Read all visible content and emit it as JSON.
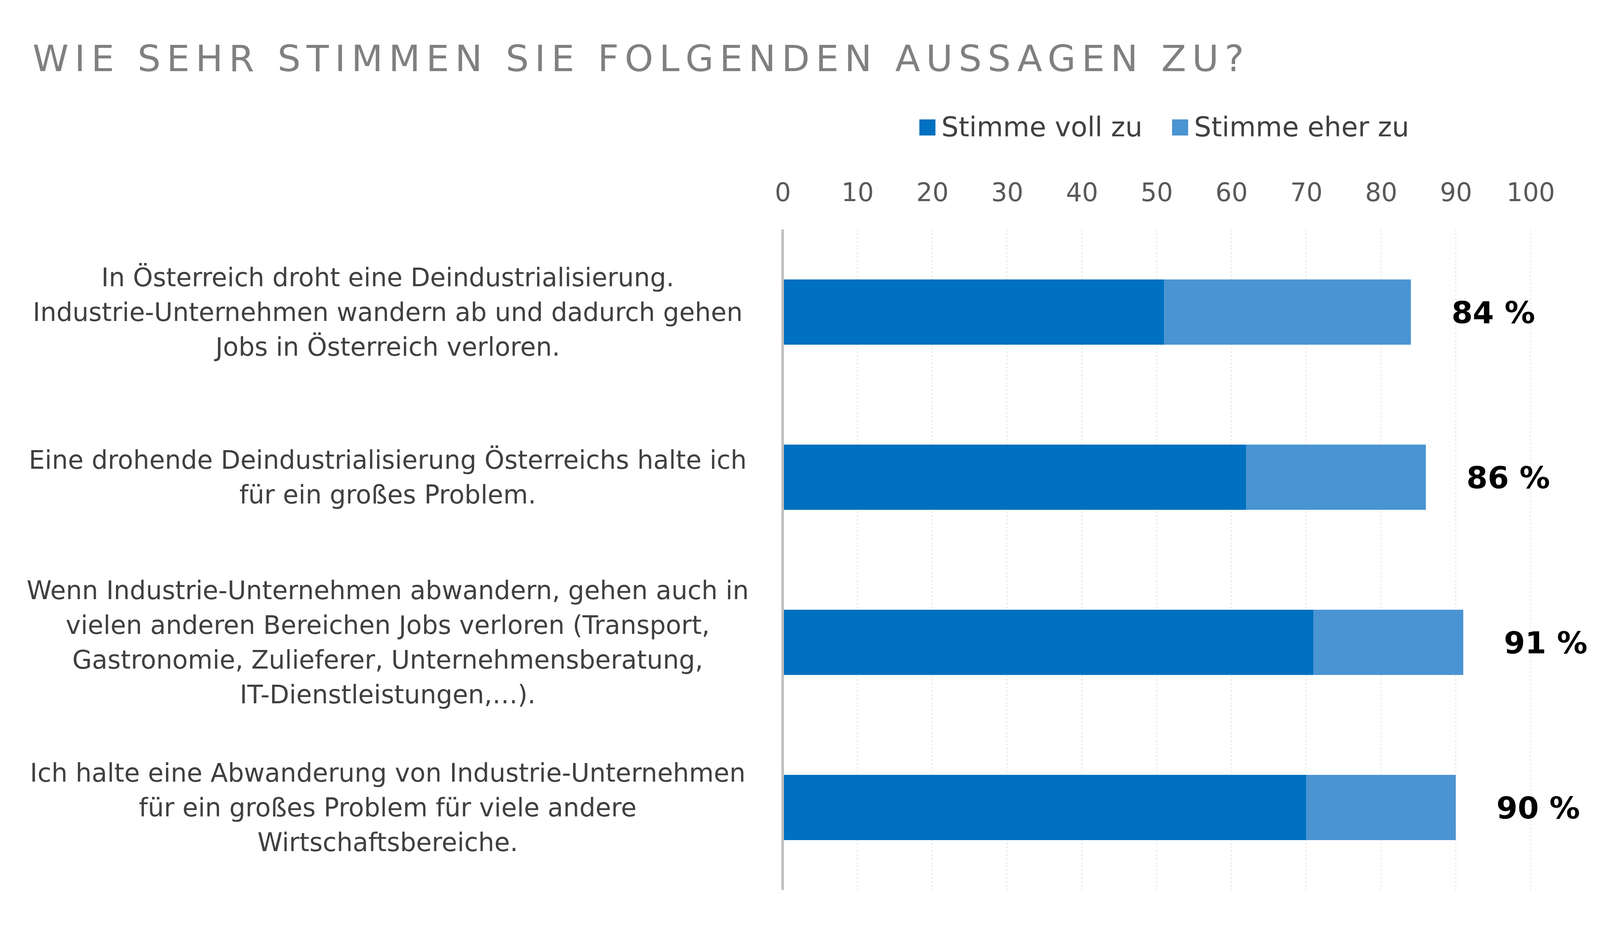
{
  "chart_data": {
    "type": "bar",
    "orientation": "horizontal",
    "stacked": true,
    "title": "WIE SEHR STIMMEN SIE FOLGENDEN AUSSAGEN ZU?",
    "categories": [
      "In Österreich droht eine Deindustrialisierung. Industrie-Unternehmen wandern ab und dadurch gehen Jobs in Österreich verloren.",
      "Eine drohende Deindustrialisierung Österreichs halte ich für ein großes Problem.",
      "Wenn Industrie-Unternehmen abwandern, gehen auch in vielen anderen Bereichen Jobs verloren (Transport, Gastronomie, Zulieferer, Unternehmensberatung, IT-Dienstleistungen,…).",
      "Ich halte eine Abwanderung von Industrie-Unternehmen für ein großes Problem für viele andere Wirtschaftsbereiche."
    ],
    "series": [
      {
        "name": "Stimme voll zu",
        "color": "#0070c0",
        "values": [
          51,
          62,
          71,
          70
        ]
      },
      {
        "name": "Stimme eher zu",
        "color": "#4a94d2",
        "values": [
          33,
          24,
          20,
          20
        ]
      }
    ],
    "totals": {
      "values": [
        84,
        86,
        91,
        90
      ],
      "value_labels": [
        "84 %",
        "86 %",
        "91 %",
        "90 %"
      ]
    },
    "xlim": [
      0,
      100
    ],
    "xticks": [
      0,
      10,
      20,
      30,
      40,
      50,
      60,
      70,
      80,
      90,
      100
    ],
    "grid": true,
    "legend": "top"
  }
}
